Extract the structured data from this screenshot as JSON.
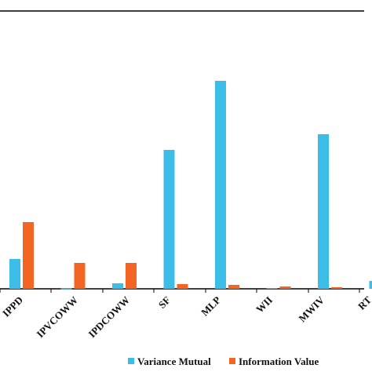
{
  "chart_data": {
    "type": "bar",
    "categories": [
      "IPPD",
      "IPVCOWW",
      "IPDCOWW",
      "SF",
      "MLP",
      "WII",
      "MWIV",
      "RT"
    ],
    "series": [
      {
        "name": "Variance Mutual",
        "color": "#3cbde8",
        "values": [
          38,
          0.5,
          7,
          177,
          265,
          1,
          197,
          10
        ]
      },
      {
        "name": "Information Value",
        "color": "#f26522",
        "values": [
          85,
          33,
          33,
          6,
          5,
          3,
          2,
          0
        ]
      }
    ],
    "ylim": [
      0,
      354
    ],
    "grid": false,
    "legend": "bottom-right",
    "title": "",
    "xlabel": "",
    "ylabel": ""
  }
}
